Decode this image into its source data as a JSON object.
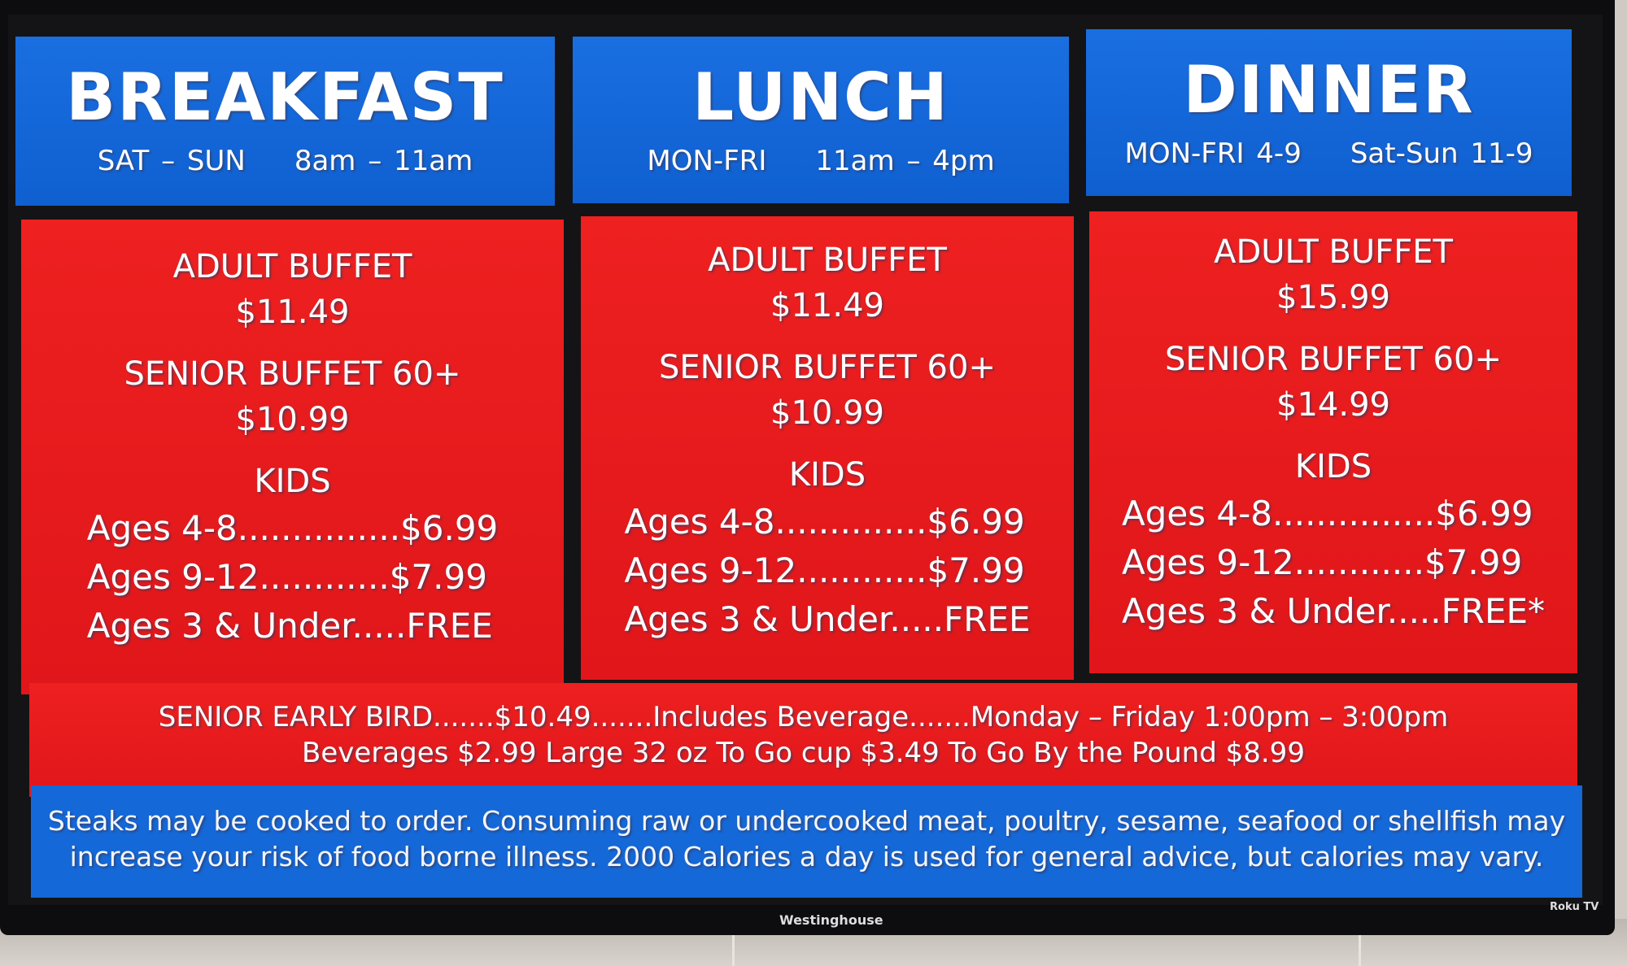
{
  "header": [
    {
      "title": "BREAKFAST",
      "days": "SAT – SUN",
      "time": "8am – 11am"
    },
    {
      "title": "LUNCH",
      "days": "MON-FRI",
      "time": "11am – 4pm"
    },
    {
      "title": "DINNER",
      "days": "MON-FRI 4-9",
      "time": "Sat-Sun 11-9"
    }
  ],
  "panels": [
    {
      "adult_label": "ADULT BUFFET",
      "adult_price": "$11.49",
      "senior_label": "SENIOR BUFFET 60+",
      "senior_price": "$10.99",
      "kids_label": "KIDS",
      "kids": [
        "Ages 4-8...............$6.99",
        "Ages 9-12............$7.99",
        "Ages 3 & Under.....FREE"
      ]
    },
    {
      "adult_label": "ADULT BUFFET",
      "adult_price": "$11.49",
      "senior_label": "SENIOR BUFFET 60+",
      "senior_price": "$10.99",
      "kids_label": "KIDS",
      "kids": [
        "Ages 4-8..............$6.99",
        "Ages 9-12............$7.99",
        "Ages 3 & Under.....FREE"
      ]
    },
    {
      "adult_label": "ADULT BUFFET",
      "adult_price": "$15.99",
      "senior_label": "SENIOR BUFFET 60+",
      "senior_price": "$14.99",
      "kids_label": "KIDS",
      "kids": [
        "Ages 4-8...............$6.99",
        "Ages 9-12............$7.99",
        "Ages 3 & Under.....FREE*"
      ]
    }
  ],
  "specials": {
    "line1": "SENIOR EARLY BIRD.......$10.49.......Includes Beverage.......Monday – Friday  1:00pm – 3:00pm",
    "line2": "Beverages $2.99 Large 32 oz To Go cup $3.49   To Go By the Pound $8.99"
  },
  "disclaimer": {
    "line1": "Steaks may be cooked to order. Consuming raw or undercooked meat, poultry, sesame, seafood or shellfish may",
    "line2": "increase your risk of food borne illness.     2000 Calories a day is used for general advice, but calories may vary."
  },
  "tv": {
    "brand": "Westinghouse",
    "platform": "Roku TV"
  },
  "colors": {
    "blue": "#1468d8",
    "red": "#e81c1c",
    "bezel": "#0d0d0f"
  }
}
